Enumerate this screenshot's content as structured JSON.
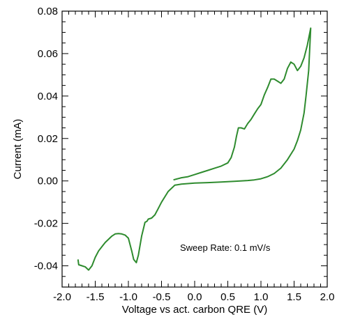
{
  "chart_data": {
    "type": "line",
    "title": "",
    "xlabel": "Voltage vs act. carbon QRE (V)",
    "ylabel": "Current (mA)",
    "xlim": [
      -2.0,
      2.0
    ],
    "ylim": [
      -0.05,
      0.08
    ],
    "x_ticks": [
      -2.0,
      -1.5,
      -1.0,
      -0.5,
      0.0,
      0.5,
      1.0,
      1.5,
      2.0
    ],
    "x_tick_labels": [
      "-2.0",
      "-1.5",
      "-1.0",
      "-0.5",
      "0.0",
      "0.5",
      "1.0",
      "1.5",
      "2.0"
    ],
    "y_ticks": [
      -0.04,
      -0.02,
      0.0,
      0.02,
      0.04,
      0.06,
      0.08
    ],
    "y_tick_labels": [
      "-0.04",
      "-0.02",
      "0.00",
      "0.02",
      "0.04",
      "0.06",
      "0.08"
    ],
    "grid": false,
    "legend": false,
    "annotation": "Sweep Rate: 0.1 mV/s",
    "series": [
      {
        "color": "#2e8b2e",
        "x": [
          -0.32,
          -0.2,
          -0.1,
          0.0,
          0.1,
          0.2,
          0.3,
          0.4,
          0.5,
          0.55,
          0.6,
          0.63,
          0.66,
          0.7,
          0.75,
          0.8,
          0.85,
          0.9,
          0.95,
          1.0,
          1.05,
          1.1,
          1.15,
          1.2,
          1.25,
          1.3,
          1.35,
          1.4,
          1.45,
          1.5,
          1.55,
          1.6,
          1.65,
          1.7,
          1.75,
          1.72,
          1.68,
          1.65,
          1.6,
          1.55,
          1.5,
          1.4,
          1.3,
          1.2,
          1.1,
          1.0,
          0.9,
          0.8,
          0.6,
          0.4,
          0.2,
          0.0,
          -0.2,
          -0.3,
          -0.4,
          -0.5,
          -0.55,
          -0.6,
          -0.65,
          -0.7,
          -0.72,
          -0.75,
          -0.8,
          -0.85,
          -0.88,
          -0.92,
          -0.95,
          -1.0,
          -1.05,
          -1.1,
          -1.15,
          -1.2,
          -1.25,
          -1.3,
          -1.35,
          -1.4,
          -1.45,
          -1.5,
          -1.55,
          -1.6,
          -1.65,
          -1.7,
          -1.75,
          -1.76
        ],
        "y": [
          0.0005,
          0.0015,
          0.002,
          0.003,
          0.004,
          0.005,
          0.006,
          0.007,
          0.0085,
          0.011,
          0.016,
          0.021,
          0.025,
          0.025,
          0.0245,
          0.027,
          0.029,
          0.0315,
          0.034,
          0.036,
          0.0405,
          0.044,
          0.048,
          0.048,
          0.047,
          0.046,
          0.048,
          0.053,
          0.056,
          0.055,
          0.052,
          0.054,
          0.058,
          0.064,
          0.072,
          0.052,
          0.04,
          0.032,
          0.024,
          0.019,
          0.015,
          0.01,
          0.006,
          0.0035,
          0.002,
          0.001,
          0.0005,
          0.0002,
          -0.0002,
          -0.0005,
          -0.0008,
          -0.001,
          -0.0015,
          -0.002,
          -0.005,
          -0.01,
          -0.013,
          -0.016,
          -0.0175,
          -0.018,
          -0.019,
          -0.0195,
          -0.026,
          -0.035,
          -0.0385,
          -0.037,
          -0.033,
          -0.027,
          -0.0255,
          -0.025,
          -0.0248,
          -0.025,
          -0.026,
          -0.0275,
          -0.029,
          -0.031,
          -0.033,
          -0.036,
          -0.04,
          -0.042,
          -0.0405,
          -0.04,
          -0.0395,
          -0.037
        ]
      }
    ]
  }
}
